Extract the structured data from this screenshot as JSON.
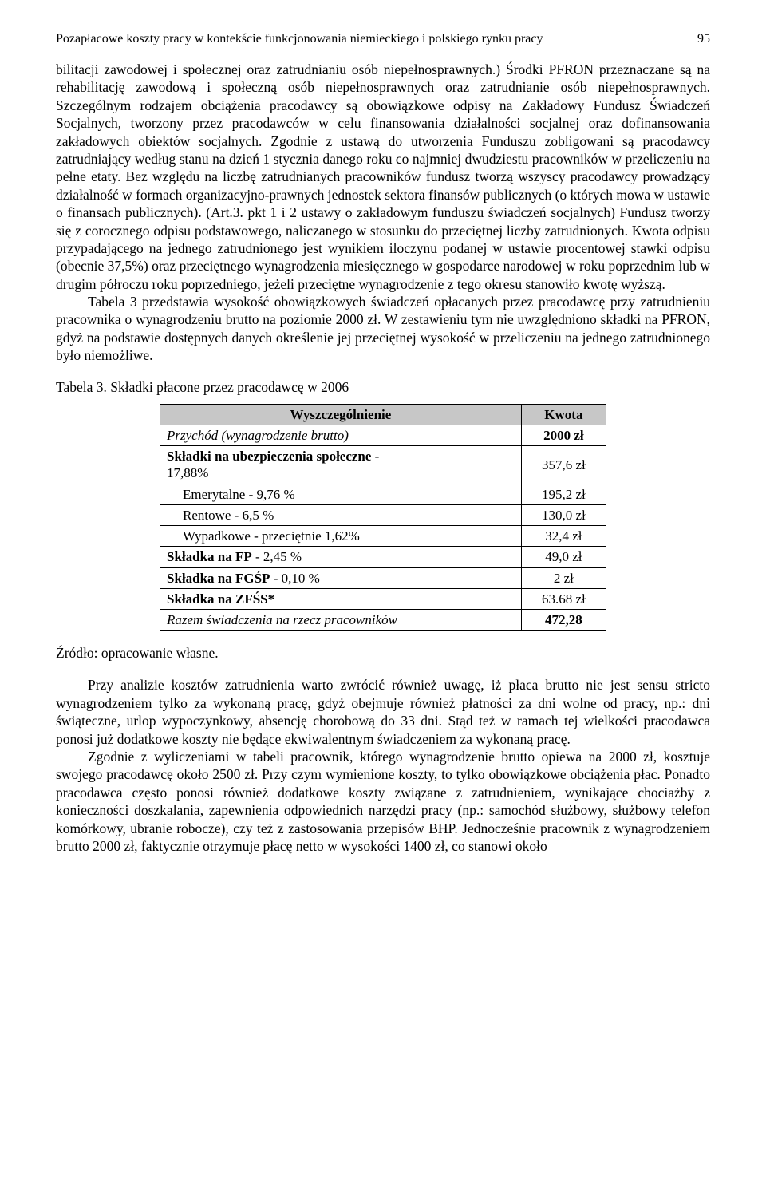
{
  "header": {
    "title": "Pozapłacowe koszty pracy w kontekście funkcjonowania niemieckiego i polskiego rynku pracy",
    "page_number": "95"
  },
  "paragraphs": {
    "p1": "bilitacji zawodowej i społecznej oraz zatrudnianiu osób niepełnosprawnych.) Środki PFRON przeznaczane są na rehabilitację zawodową i społeczną osób niepełnosprawnych oraz zatrudnianie osób niepełnosprawnych. Szczególnym rodzajem obciążenia pracodawcy są obowiązkowe odpisy na Zakładowy Fundusz Świadczeń Socjalnych, tworzony przez pracodawców w celu finansowania działalności socjalnej oraz dofinansowania zakładowych obiektów socjalnych. Zgodnie z ustawą do utworzenia Funduszu zobligowani są pracodawcy zatrudniający według stanu na dzień 1 stycznia danego roku co najmniej dwudziestu pracowników w przeliczeniu na pełne etaty. Bez względu na liczbę zatrudnianych pracowników fundusz tworzą wszyscy pracodawcy prowadzący działalność w formach organizacyjno-prawnych jednostek sektora finansów publicznych (o których mowa w ustawie o finansach publicznych). (Art.3. pkt 1 i 2 ustawy o zakładowym funduszu świadczeń socjalnych) Fundusz tworzy się z corocznego odpisu podstawowego, naliczanego w stosunku do przeciętnej liczby zatrudnionych. Kwota odpisu przypadającego na jednego zatrudnionego jest wynikiem iloczynu podanej w ustawie procentowej stawki odpisu (obecnie 37,5%) oraz przeciętnego wynagrodzenia miesięcznego w gospodarce narodowej w roku poprzednim lub w drugim półroczu roku poprzedniego, jeżeli przeciętne wynagrodzenie z tego okresu stanowiło kwotę wyższą.",
    "p2": "Tabela 3 przedstawia wysokość obowiązkowych świadczeń opłacanych przez pracodawcę przy zatrudnieniu pracownika o wynagrodzeniu brutto na poziomie 2000 zł. W zestawieniu tym nie uwzględniono składki na PFRON, gdyż na podstawie dostępnych danych określenie jej przeciętnej wysokość w przeliczeniu na jednego zatrudnionego było niemożliwe.",
    "p3": "Przy analizie kosztów zatrudnienia warto zwrócić również uwagę, iż płaca brutto nie jest sensu stricto wynagrodzeniem tylko za wykonaną pracę, gdyż obejmuje również płatności za dni wolne od pracy, np.: dni świąteczne, urlop wypoczynkowy, absencję chorobową do 33 dni. Stąd też w ramach tej wielkości pracodawca ponosi już dodatkowe koszty nie będące ekwiwalentnym świadczeniem za wykonaną pracę.",
    "p4": "Zgodnie z wyliczeniami w tabeli pracownik, którego wynagrodzenie brutto opiewa na 2000 zł, kosztuje swojego pracodawcę około 2500 zł. Przy czym wymienione koszty, to tylko obowiązkowe obciążenia płac. Ponadto pracodawca często ponosi również dodatkowe koszty związane z zatrudnieniem, wynikające chociażby z konieczności doszkalania, zapewnienia odpowiednich narzędzi pracy (np.: samochód służbowy, służbowy telefon komórkowy, ubranie robocze), czy też z zastosowania przepisów BHP. Jednocześnie pracownik z wynagrodzeniem brutto 2000 zł, faktycznie otrzymuje płacę netto w wysokości 1400 zł, co stanowi około"
  },
  "table": {
    "caption": "Tabela 3. Składki płacone przez pracodawcę w 2006",
    "header_col1": "Wyszczególnienie",
    "header_col2": "Kwota",
    "rows": [
      {
        "label": "Przychód (wynagrodzenie brutto)",
        "value": "2000 zł",
        "italic": true
      },
      {
        "label": "Składki na ubezpieczenia społeczne - 17,88%",
        "value": "357,6 zł",
        "bold": true
      },
      {
        "label": "Emerytalne - 9,76 %",
        "value": "195,2 zł",
        "sub": true
      },
      {
        "label": "Rentowe - 6,5 %",
        "value": "130,0 zł",
        "sub": true
      },
      {
        "label": "Wypadkowe - przeciętnie 1,62%",
        "value": "32,4 zł",
        "sub": true
      },
      {
        "label": "Składka na FP - 2,45 %",
        "value": "49,0 zł",
        "boldlabel": "Składka na FP"
      },
      {
        "label": "Składka na FGŚP - 0,10 %",
        "value": "2 zł",
        "boldlabel": "Składka na FGŚP"
      },
      {
        "label": "Składka na ZFŚS*",
        "value": "63.68 zł",
        "boldlabel": "Składka na ZFŚS*"
      },
      {
        "label": "Razem świadczenia na rzecz pracowników",
        "value": "472,28",
        "italic": true,
        "boldvalue": true
      }
    ]
  },
  "source": "Źródło: opracowanie własne."
}
